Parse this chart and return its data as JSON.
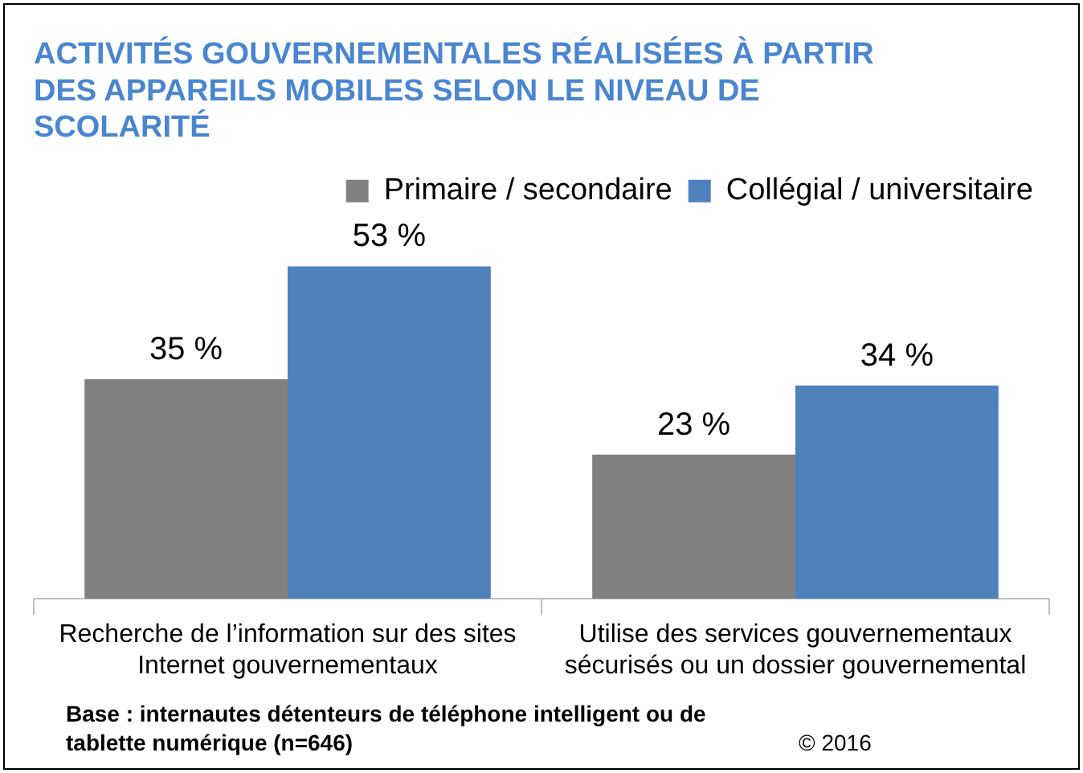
{
  "chart_data": {
    "type": "bar",
    "title": "ACTIVITÉS GOUVERNEMENTALES RÉALISÉES À PARTIR DES APPAREILS MOBILES SELON LE NIVEAU DE SCOLARITÉ",
    "categories": [
      "Recherche de l’information sur des sites Internet gouvernementaux",
      "Utilise des services gouvernementaux sécurisés ou un dossier gouvernemental"
    ],
    "series": [
      {
        "name": "Primaire / secondaire",
        "color": "#808080",
        "values": [
          35,
          23
        ],
        "value_labels": [
          "35 %",
          "23 %"
        ]
      },
      {
        "name": "Collégial / universitaire",
        "color": "#4f81bd",
        "values": [
          53,
          34
        ],
        "value_labels": [
          "53 %",
          "34 %"
        ]
      }
    ],
    "grid": false,
    "legend": "top right",
    "annotations": [
      "Base : internautes détenteurs de téléphone intelligent ou de tablette numérique (n=646)",
      "© 2016"
    ]
  }
}
